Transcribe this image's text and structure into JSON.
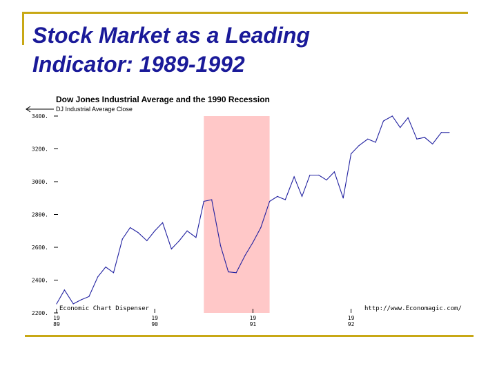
{
  "slide": {
    "title_line1": "Stock Market as a Leading",
    "title_line2": "Indicator: 1989-1992"
  },
  "colors": {
    "accent_rule": "#c8a815",
    "title": "#1a1a99",
    "line": "#2020a0",
    "recession": "#ffc8c8"
  },
  "chart_data": {
    "type": "line",
    "title": "Dow Jones Industrial Average and the 1990 Recession",
    "legend": "DJ Industrial Average Close",
    "credit_left": "Economic Chart Dispenser",
    "credit_right": "http://www.Economagic.com/",
    "ylim": [
      2200,
      3400
    ],
    "xlim": [
      1989.0,
      1993.1
    ],
    "y_ticks": [
      {
        "value": 2200,
        "label": "2200."
      },
      {
        "value": 2400,
        "label": "2400."
      },
      {
        "value": 2600,
        "label": "2600."
      },
      {
        "value": 2800,
        "label": "2800."
      },
      {
        "value": 3000,
        "label": "3000."
      },
      {
        "value": 3200,
        "label": "3200."
      },
      {
        "value": 3400,
        "label": "3400."
      }
    ],
    "x_ticks": [
      {
        "value": 1989.0,
        "top": "19",
        "bottom": "89"
      },
      {
        "value": 1990.0,
        "top": "19",
        "bottom": "90"
      },
      {
        "value": 1991.0,
        "top": "19",
        "bottom": "91"
      },
      {
        "value": 1992.0,
        "top": "19",
        "bottom": "92"
      }
    ],
    "recession": {
      "start": 1990.5,
      "end": 1991.17
    },
    "series": [
      {
        "name": "DJ Industrial Average Close",
        "x": [
          1989.0,
          1989.08,
          1989.17,
          1989.25,
          1989.33,
          1989.42,
          1989.5,
          1989.58,
          1989.67,
          1989.75,
          1989.83,
          1989.92,
          1990.0,
          1990.08,
          1990.17,
          1990.25,
          1990.33,
          1990.42,
          1990.5,
          1990.58,
          1990.67,
          1990.75,
          1990.83,
          1990.92,
          1991.0,
          1991.08,
          1991.17,
          1991.25,
          1991.33,
          1991.42,
          1991.5,
          1991.58,
          1991.67,
          1991.75,
          1991.83,
          1991.92,
          1992.0,
          1992.08,
          1992.17,
          1992.25,
          1992.33,
          1992.42,
          1992.5,
          1992.58,
          1992.67,
          1992.75,
          1992.83,
          1992.92,
          1993.0
        ],
        "values": [
          2255,
          2340,
          2255,
          2280,
          2300,
          2420,
          2480,
          2445,
          2650,
          2720,
          2690,
          2640,
          2700,
          2750,
          2590,
          2640,
          2700,
          2660,
          2880,
          2890,
          2610,
          2450,
          2445,
          2550,
          2630,
          2720,
          2880,
          2910,
          2890,
          3030,
          2910,
          3040,
          3040,
          3010,
          3060,
          2900,
          3170,
          3220,
          3260,
          3240,
          3370,
          3400,
          3330,
          3390,
          3260,
          3270,
          3230,
          3300,
          3300
        ]
      }
    ]
  }
}
